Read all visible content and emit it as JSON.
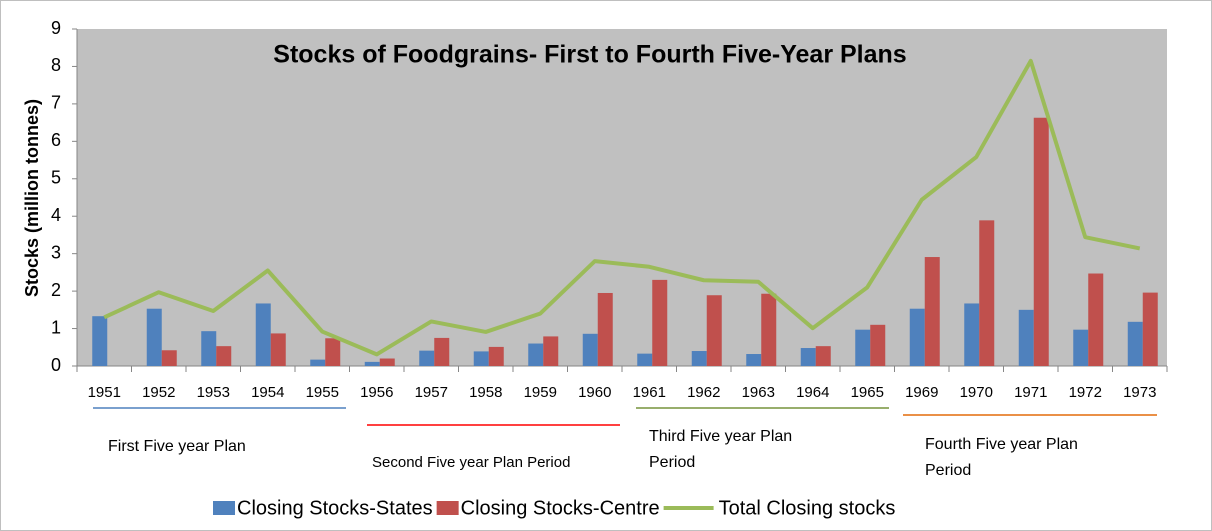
{
  "chart_data": {
    "type": "bar",
    "title": "Stocks of Foodgrains- First to Fourth Five-Year Plans",
    "y_label": "Stocks (million tonnes)",
    "categories": [
      "1951",
      "1952",
      "1953",
      "1954",
      "1955",
      "1956",
      "1957",
      "1958",
      "1959",
      "1960",
      "1961",
      "1962",
      "1963",
      "1964",
      "1965",
      "1969",
      "1970",
      "1971",
      "1972",
      "1973"
    ],
    "series": [
      {
        "name": "Closing Stocks-States",
        "type": "bar",
        "color": "#4f81bd",
        "values": [
          1.33,
          1.53,
          0.93,
          1.67,
          0.17,
          0.11,
          0.41,
          0.39,
          0.6,
          0.86,
          0.33,
          0.4,
          0.32,
          0.48,
          0.97,
          1.53,
          1.67,
          1.5,
          0.97,
          1.18
        ]
      },
      {
        "name": "Closing Stocks-Centre",
        "type": "bar",
        "color": "#c0504d",
        "values": [
          null,
          0.42,
          0.53,
          0.87,
          0.74,
          0.2,
          0.75,
          0.51,
          0.79,
          1.95,
          2.3,
          1.89,
          1.93,
          0.53,
          1.1,
          2.91,
          3.89,
          6.63,
          2.47,
          1.96
        ]
      },
      {
        "name": "Total Closing stocks",
        "type": "line",
        "color": "#9bbb59",
        "values": [
          1.3,
          1.97,
          1.47,
          2.55,
          0.92,
          0.31,
          1.19,
          0.91,
          1.4,
          2.8,
          2.65,
          2.29,
          2.25,
          1.01,
          2.1,
          4.44,
          5.58,
          8.15,
          3.44,
          3.14
        ]
      }
    ],
    "ylim": [
      0,
      9
    ],
    "yticks": [
      0,
      1,
      2,
      3,
      4,
      5,
      6,
      7,
      8,
      9
    ],
    "plot_background": "#c0c0c0",
    "annotations": [
      {
        "label": "First Five year Plan",
        "color": "#4f81bd"
      },
      {
        "label": "Second Five year Plan Period",
        "color": "#ff0000"
      },
      {
        "label": "Third Five year Plan Period",
        "color": "#77933c"
      },
      {
        "label": "Fourth Five year Plan Period",
        "color": "#e46c0a"
      }
    ],
    "legend": "bottom"
  }
}
